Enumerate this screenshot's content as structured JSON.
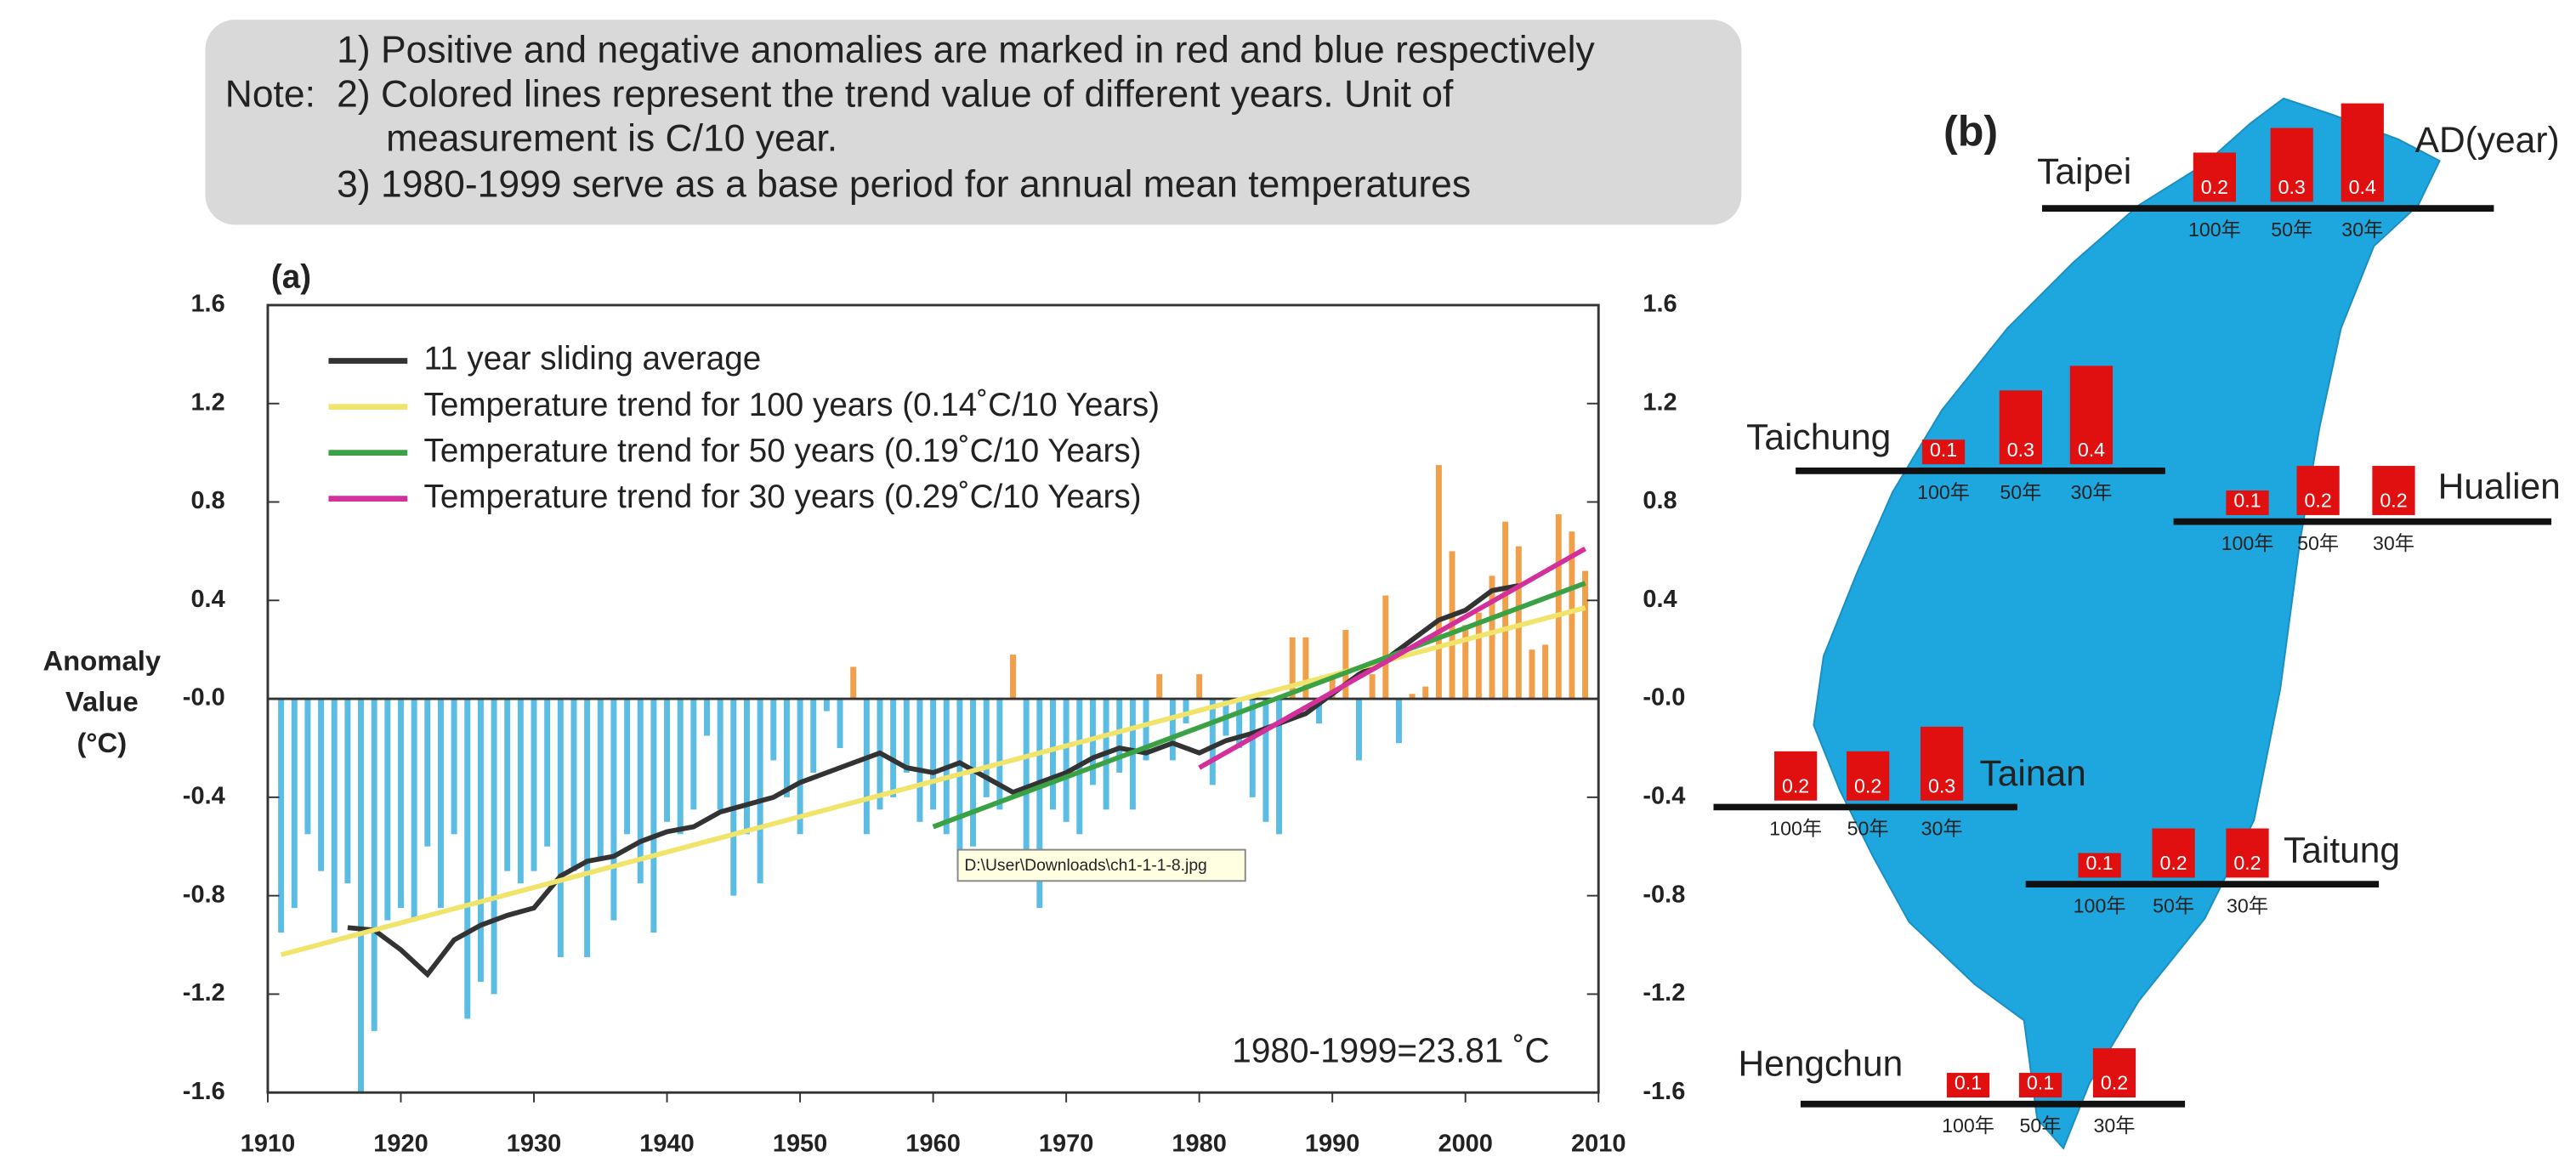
{
  "note": {
    "label": "Note:",
    "lines": [
      "1) Positive and negative anomalies are marked in red and blue respectively",
      "2) Colored lines represent the trend value of different years. Unit of",
      "measurement is C/10 year.",
      "3) 1980-1999 serve as a base period for annual mean temperatures"
    ]
  },
  "tooltip": "D:\\User\\Downloads\\ch1-1-1-8.jpg",
  "chart_data": [
    {
      "type": "bar-line",
      "title": "(a)",
      "ylabel": [
        "Anomaly",
        "Value",
        "(°C)"
      ],
      "annotation": "1980-1999=23.81 ˚C",
      "xlim": [
        1910,
        2010
      ],
      "xticks": [
        1910,
        1920,
        1930,
        1940,
        1950,
        1960,
        1970,
        1980,
        1990,
        2000,
        2010
      ],
      "ylim": [
        -1.6,
        1.6
      ],
      "yticks": [
        -1.6,
        -1.2,
        -0.8,
        -0.4,
        {
          "value": 0,
          "label": "-0.0"
        },
        0.4,
        0.8,
        1.2,
        1.6
      ],
      "positive_color": "#f0a04b",
      "negative_color": "#5bbce4",
      "x": [
        1911,
        1912,
        1913,
        1914,
        1915,
        1916,
        1917,
        1918,
        1919,
        1920,
        1921,
        1922,
        1923,
        1924,
        1925,
        1926,
        1927,
        1928,
        1929,
        1930,
        1931,
        1932,
        1933,
        1934,
        1935,
        1936,
        1937,
        1938,
        1939,
        1940,
        1941,
        1942,
        1943,
        1944,
        1945,
        1946,
        1947,
        1948,
        1949,
        1950,
        1951,
        1952,
        1953,
        1954,
        1955,
        1956,
        1957,
        1958,
        1959,
        1960,
        1961,
        1962,
        1963,
        1964,
        1965,
        1966,
        1967,
        1968,
        1969,
        1970,
        1971,
        1972,
        1973,
        1974,
        1975,
        1976,
        1977,
        1978,
        1979,
        1980,
        1981,
        1982,
        1983,
        1984,
        1985,
        1986,
        1987,
        1988,
        1989,
        1990,
        1991,
        1992,
        1993,
        1994,
        1995,
        1996,
        1997,
        1998,
        1999,
        2000,
        2001,
        2002,
        2003,
        2004,
        2005,
        2006,
        2007,
        2008,
        2009
      ],
      "values": [
        -0.95,
        -0.85,
        -0.55,
        -0.7,
        -0.95,
        -0.75,
        -1.6,
        -1.35,
        -0.9,
        -0.85,
        -0.9,
        -0.6,
        -0.85,
        -0.55,
        -1.3,
        -1.15,
        -1.2,
        -0.7,
        -0.75,
        -0.7,
        -0.6,
        -1.05,
        -0.7,
        -1.05,
        -0.65,
        -0.9,
        -0.55,
        -0.75,
        -0.95,
        -0.5,
        -0.55,
        -0.45,
        -0.15,
        -0.45,
        -0.8,
        -0.55,
        -0.75,
        -0.25,
        -0.4,
        -0.55,
        -0.3,
        -0.05,
        -0.2,
        0.13,
        -0.55,
        -0.45,
        -0.4,
        -0.3,
        -0.5,
        -0.45,
        -0.55,
        -0.7,
        -0.6,
        -0.4,
        -0.45,
        0.18,
        -0.65,
        -0.85,
        -0.45,
        -0.5,
        -0.55,
        -0.35,
        -0.45,
        -0.3,
        -0.45,
        -0.25,
        0.1,
        -0.25,
        -0.1,
        0.1,
        -0.35,
        -0.15,
        -0.2,
        -0.4,
        -0.5,
        -0.55,
        0.25,
        0.25,
        -0.1,
        0.1,
        0.28,
        -0.25,
        0.1,
        0.42,
        -0.18,
        0.02,
        0.05,
        0.95,
        0.6,
        0.3,
        0.35,
        0.5,
        0.72,
        0.62,
        0.2,
        0.22,
        0.75,
        0.68,
        0.52
      ],
      "series": [
        {
          "name": "11 year sliding average",
          "color": "#333333",
          "x": [
            1916,
            1918,
            1920,
            1922,
            1924,
            1926,
            1928,
            1930,
            1932,
            1934,
            1936,
            1938,
            1940,
            1942,
            1944,
            1946,
            1948,
            1950,
            1952,
            1954,
            1956,
            1958,
            1960,
            1962,
            1964,
            1966,
            1968,
            1970,
            1972,
            1974,
            1976,
            1978,
            1980,
            1982,
            1984,
            1986,
            1988,
            1990,
            1992,
            1994,
            1996,
            1998,
            2000,
            2002,
            2004
          ],
          "values": [
            -0.93,
            -0.94,
            -1.02,
            -1.12,
            -0.98,
            -0.92,
            -0.88,
            -0.85,
            -0.72,
            -0.66,
            -0.64,
            -0.58,
            -0.54,
            -0.52,
            -0.46,
            -0.43,
            -0.4,
            -0.34,
            -0.3,
            -0.26,
            -0.22,
            -0.28,
            -0.3,
            -0.26,
            -0.32,
            -0.38,
            -0.34,
            -0.3,
            -0.24,
            -0.2,
            -0.22,
            -0.18,
            -0.22,
            -0.17,
            -0.14,
            -0.1,
            -0.06,
            0.02,
            0.1,
            0.16,
            0.24,
            0.32,
            0.36,
            0.44,
            0.46
          ]
        },
        {
          "name": "Temperature trend for 100 years (0.14˚C/10 Years)",
          "color": "#f0e46a",
          "x": [
            1911,
            2009
          ],
          "values": [
            -1.04,
            0.37
          ]
        },
        {
          "name": "Temperature trend for 50 years (0.19˚C/10 Years)",
          "color": "#3aa244",
          "x": [
            1960,
            2009
          ],
          "values": [
            -0.52,
            0.47
          ]
        },
        {
          "name": "Temperature trend for 30 years (0.29˚C/10 Years)",
          "color": "#d4309c",
          "x": [
            1980,
            2009
          ],
          "values": [
            -0.28,
            0.61
          ]
        }
      ]
    },
    {
      "type": "map-bar",
      "title": "(b)",
      "unit": "AD(year)",
      "color": "#e01010",
      "categories": [
        "100年",
        "50年",
        "30年"
      ],
      "stations": [
        {
          "name": "Taipei",
          "values": [
            0.2,
            0.3,
            0.4
          ]
        },
        {
          "name": "Taichung",
          "values": [
            0.1,
            0.3,
            0.4
          ]
        },
        {
          "name": "Hualien",
          "values": [
            0.1,
            0.2,
            0.2
          ]
        },
        {
          "name": "Tainan",
          "values": [
            0.2,
            0.2,
            0.3
          ]
        },
        {
          "name": "Taitung",
          "values": [
            0.1,
            0.2,
            0.2
          ]
        },
        {
          "name": "Hengchun",
          "values": [
            0.1,
            0.1,
            0.2
          ]
        }
      ]
    }
  ]
}
